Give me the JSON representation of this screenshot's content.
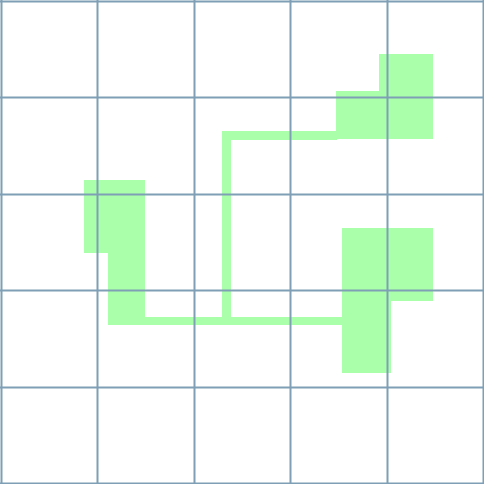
{
  "grid": {
    "rows": 5,
    "cols": 5,
    "line_color": "#7e9fb5",
    "background": "#ffffff"
  },
  "shape": {
    "fill_color": "#aaffaa"
  }
}
